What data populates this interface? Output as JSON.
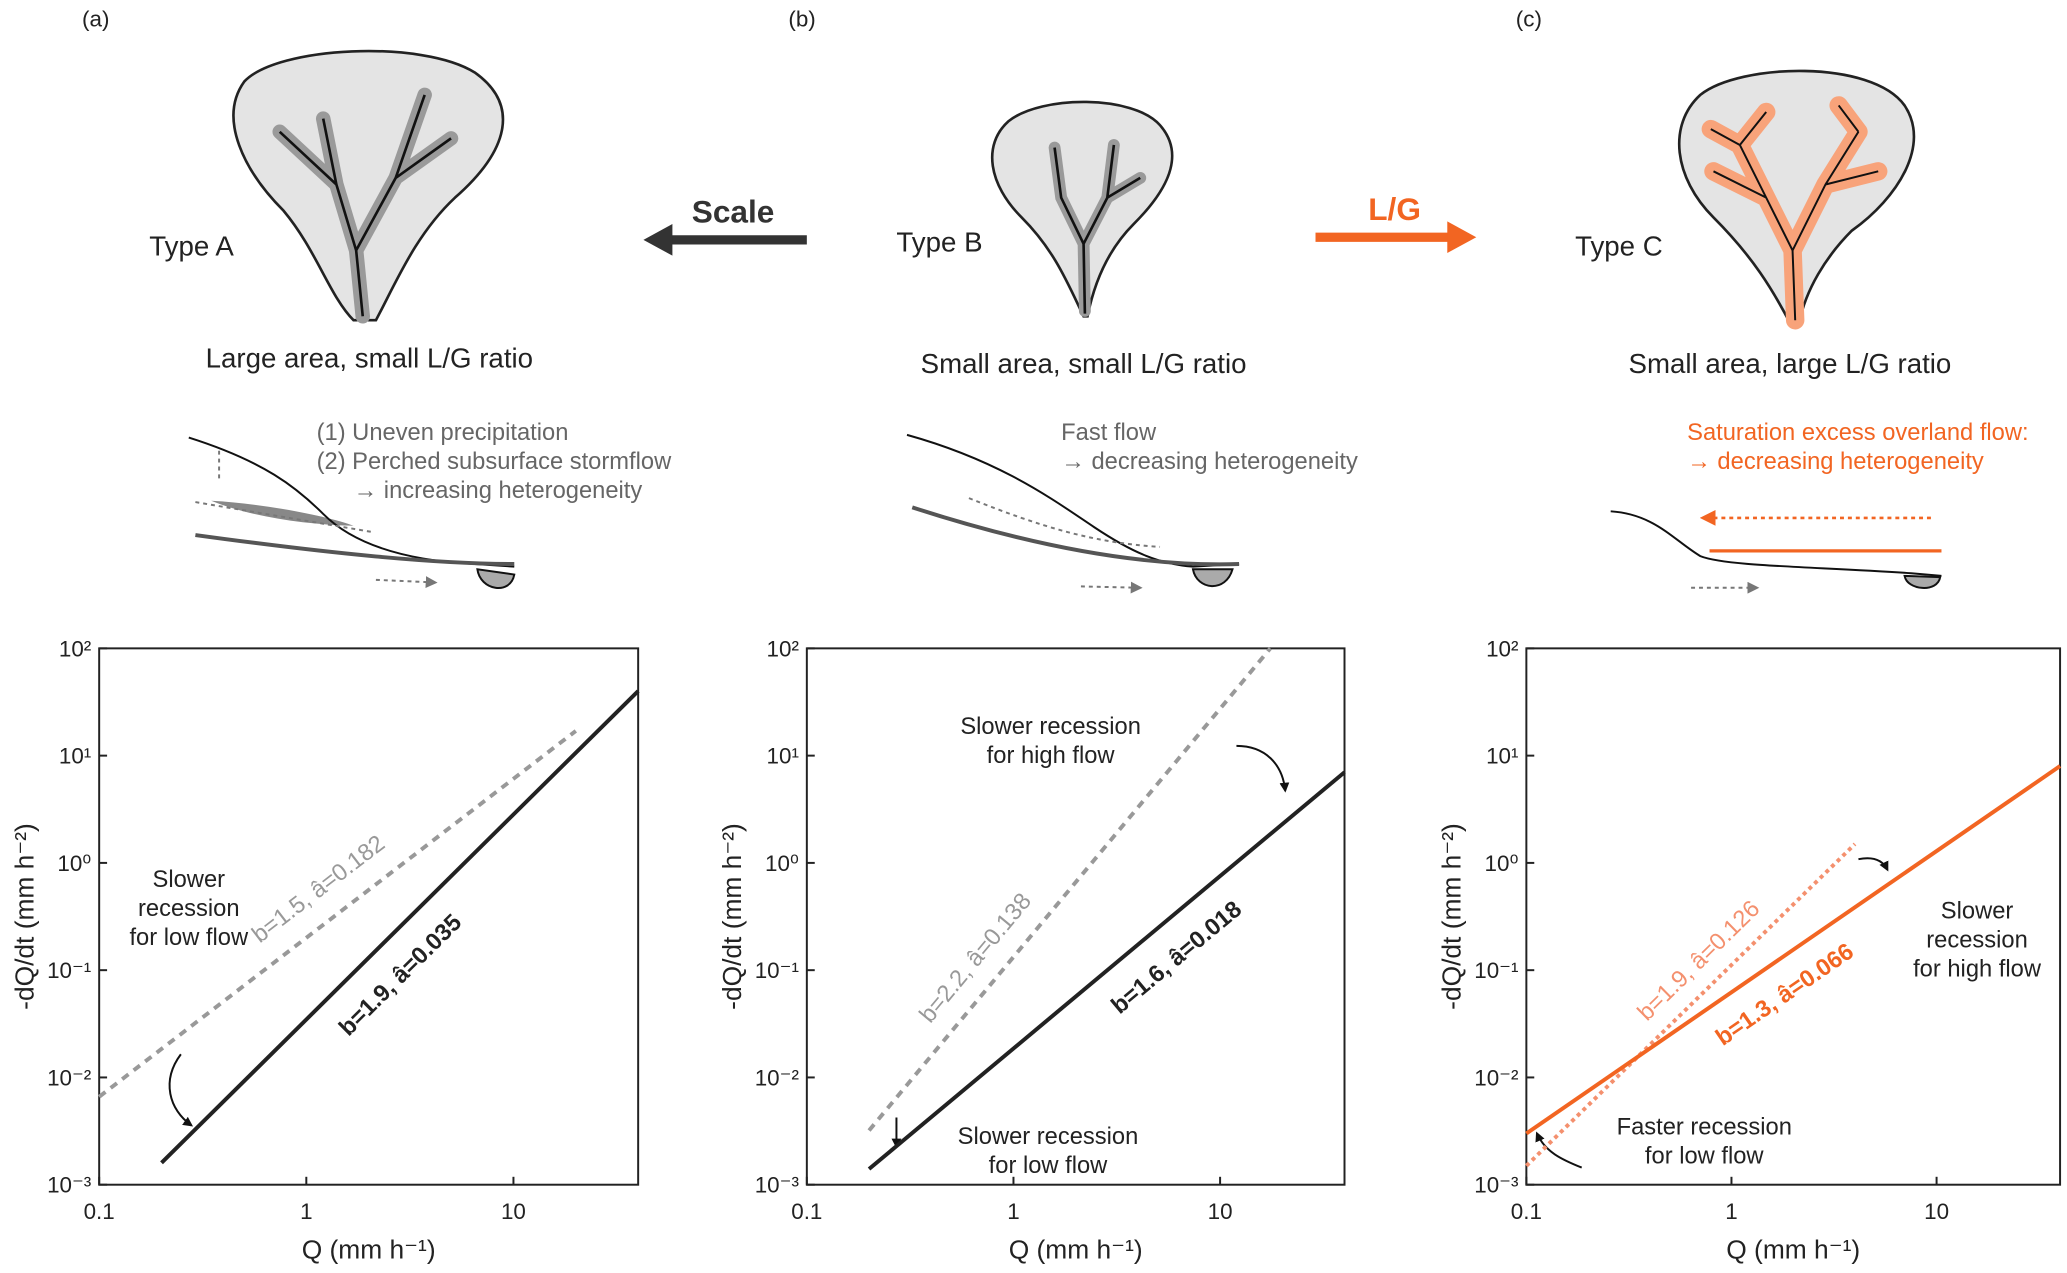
{
  "chart_data": [
    {
      "type": "line",
      "xlabel": "Q (mm h⁻¹)",
      "ylabel": "-dQ/dt (mm h⁻²)",
      "xscale": "log",
      "yscale": "log",
      "xlim": [
        0.1,
        40
      ],
      "ylim": [
        0.001,
        100
      ],
      "xticks": [
        0.1,
        1,
        10
      ],
      "yticks": [
        {
          "value": 0.001,
          "label": "10⁻³"
        },
        {
          "value": 0.01,
          "label": "10⁻²"
        },
        {
          "value": 0.1,
          "label": "10⁻¹"
        },
        {
          "value": 1,
          "label": "10⁰"
        },
        {
          "value": 10,
          "label": "10¹"
        },
        {
          "value": 100,
          "label": "10²"
        }
      ],
      "series": [
        {
          "name": "b=1.5, â=0.182",
          "color": "#999999",
          "style": "dashed",
          "x": [
            0.1,
            20
          ],
          "values": [
            0.0066,
            17
          ]
        },
        {
          "name": "b=1.9, â=0.035",
          "color": "#222222",
          "style": "solid",
          "x": [
            0.2,
            40
          ],
          "values": [
            0.0016,
            40
          ]
        }
      ],
      "annotations": [
        [
          "Slower",
          "recession",
          "for low flow"
        ]
      ]
    },
    {
      "type": "line",
      "xlabel": "Q (mm h⁻¹)",
      "ylabel": "-dQ/dt (mm h⁻²)",
      "xscale": "log",
      "yscale": "log",
      "xlim": [
        0.1,
        40
      ],
      "ylim": [
        0.001,
        100
      ],
      "xticks": [
        0.1,
        1,
        10
      ],
      "yticks": [
        {
          "value": 0.001,
          "label": "10⁻³"
        },
        {
          "value": 0.01,
          "label": "10⁻²"
        },
        {
          "value": 0.1,
          "label": "10⁻¹"
        },
        {
          "value": 1,
          "label": "10⁰"
        },
        {
          "value": 10,
          "label": "10¹"
        },
        {
          "value": 100,
          "label": "10²"
        }
      ],
      "series": [
        {
          "name": "b=2.2, â=0.138",
          "color": "#999999",
          "style": "dashed",
          "x": [
            0.2,
            17.5
          ],
          "values": [
            0.0032,
            100
          ]
        },
        {
          "name": "b=1.6, â=0.018",
          "color": "#222222",
          "style": "solid",
          "x": [
            0.2,
            40
          ],
          "values": [
            0.0014,
            7
          ]
        }
      ],
      "annotations": [
        [
          "Slower recession",
          "for high flow"
        ],
        [
          "Slower recession",
          "for low flow"
        ]
      ]
    },
    {
      "type": "line",
      "xlabel": "Q (mm h⁻¹)",
      "ylabel": "-dQ/dt (mm h⁻²)",
      "xscale": "log",
      "yscale": "log",
      "xlim": [
        0.1,
        40
      ],
      "ylim": [
        0.001,
        100
      ],
      "xticks": [
        0.1,
        1,
        10
      ],
      "yticks": [
        {
          "value": 0.001,
          "label": "10⁻³"
        },
        {
          "value": 0.01,
          "label": "10⁻²"
        },
        {
          "value": 0.1,
          "label": "10⁻¹"
        },
        {
          "value": 1,
          "label": "10⁰"
        },
        {
          "value": 10,
          "label": "10¹"
        },
        {
          "value": 100,
          "label": "10²"
        }
      ],
      "series": [
        {
          "name": "b=1.9, â=0.126",
          "color": "#f4906e",
          "style": "dotted",
          "x": [
            0.1,
            4
          ],
          "values": [
            0.0015,
            1.5
          ]
        },
        {
          "name": "b=1.3, â=0.066",
          "color": "#f26522",
          "style": "solid",
          "x": [
            0.1,
            40
          ],
          "values": [
            0.003,
            8
          ]
        }
      ],
      "annotations": [
        [
          "Slower",
          "recession",
          "for high flow"
        ],
        [
          "Faster recession",
          "for low flow"
        ]
      ]
    }
  ],
  "diagram": {
    "arrows": [
      "Scale",
      "L/G"
    ],
    "panels": [
      {
        "label": "(a)",
        "type": "Type A",
        "caption": "Large area, small L/G ratio",
        "notes": [
          "(1) Uneven precipitation",
          "(2) Perched subsurface stormflow",
          "→ increasing  heterogeneity"
        ]
      },
      {
        "label": "(b)",
        "type": "Type B",
        "caption": "Small area, small L/G ratio",
        "notes": [
          "Fast flow",
          "→ decreasing heterogeneity"
        ]
      },
      {
        "label": "(c)",
        "type": "Type C",
        "caption": "Small area, large L/G ratio",
        "notes": [
          "Saturation excess overland flow:",
          "→ decreasing heterogeneity"
        ]
      }
    ]
  }
}
